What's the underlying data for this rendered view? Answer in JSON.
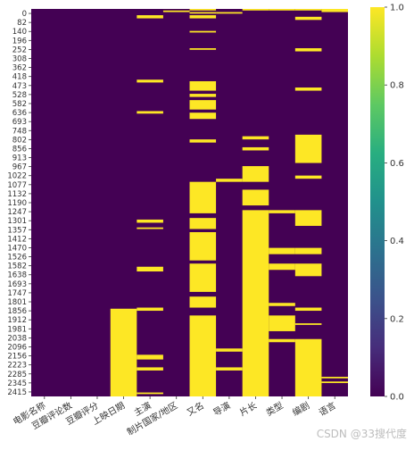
{
  "chart_data": {
    "type": "heatmap",
    "title": "",
    "xlabel": "",
    "ylabel": "",
    "value_range": [
      0.0,
      1.0
    ],
    "colormap": "viridis",
    "colors": {
      "low": "#440154",
      "high": "#fde725"
    },
    "x_categories": [
      "电影名称",
      "豆瓣评论数",
      "豆瓣评分",
      "上映日期",
      "主演",
      "制片国家/地区",
      "又名",
      "导演",
      "片长",
      "类型",
      "编剧",
      "语言"
    ],
    "y_tick_labels": [
      "0",
      "82",
      "140",
      "196",
      "252",
      "308",
      "362",
      "418",
      "473",
      "528",
      "582",
      "636",
      "693",
      "748",
      "802",
      "856",
      "913",
      "967",
      "1022",
      "1077",
      "1132",
      "1190",
      "1247",
      "1301",
      "1357",
      "1412",
      "1470",
      "1526",
      "1582",
      "1638",
      "1693",
      "1747",
      "1801",
      "1856",
      "1912",
      "1981",
      "2038",
      "2096",
      "2156",
      "2223",
      "2285",
      "2345",
      "2415"
    ],
    "row_count": 2465,
    "colorbar_ticks": [
      "0.0",
      "0.2",
      "0.4",
      "0.6",
      "0.8",
      "1.0"
    ],
    "missing_segments": {
      "电影名称": [],
      "豆瓣评论数": [],
      "豆瓣评分": [],
      "上映日期": [
        [
          1907,
          2465
        ]
      ],
      "主演": [
        [
          40,
          60
        ],
        [
          450,
          468
        ],
        [
          650,
          666
        ],
        [
          1340,
          1360
        ],
        [
          1390,
          1400
        ],
        [
          1640,
          1670
        ],
        [
          1900,
          1920
        ],
        [
          2200,
          2230
        ],
        [
          2280,
          2300
        ],
        [
          2440,
          2450
        ]
      ],
      "制片国家/地区": [
        [
          10,
          20
        ]
      ],
      "又名": [
        [
          0,
          10
        ],
        [
          20,
          30
        ],
        [
          40,
          60
        ],
        [
          140,
          150
        ],
        [
          250,
          260
        ],
        [
          460,
          520
        ],
        [
          540,
          560
        ],
        [
          580,
          640
        ],
        [
          660,
          700
        ],
        [
          830,
          850
        ],
        [
          1100,
          1300
        ],
        [
          1330,
          1400
        ],
        [
          1420,
          1600
        ],
        [
          1620,
          1800
        ],
        [
          1830,
          1900
        ],
        [
          1950,
          2465
        ]
      ],
      "导演": [
        [
          20,
          30
        ],
        [
          1080,
          1100
        ],
        [
          2160,
          2180
        ],
        [
          2280,
          2300
        ]
      ],
      "片长": [
        [
          0,
          10
        ],
        [
          810,
          830
        ],
        [
          880,
          900
        ],
        [
          1000,
          1100
        ],
        [
          1150,
          1250
        ],
        [
          1280,
          2465
        ]
      ],
      "类型": [
        [
          0,
          10
        ],
        [
          1280,
          1300
        ],
        [
          1520,
          1560
        ],
        [
          1620,
          1660
        ],
        [
          1870,
          1890
        ],
        [
          1950,
          2050
        ],
        [
          2100,
          2120
        ]
      ],
      "编剧": [
        [
          0,
          10
        ],
        [
          50,
          70
        ],
        [
          250,
          270
        ],
        [
          500,
          520
        ],
        [
          800,
          980
        ],
        [
          1060,
          1080
        ],
        [
          1280,
          1380
        ],
        [
          1520,
          1560
        ],
        [
          1620,
          1700
        ],
        [
          1900,
          1920
        ],
        [
          2000,
          2010
        ],
        [
          2100,
          2465
        ]
      ],
      "语言": [
        [
          0,
          20
        ],
        [
          2340,
          2350
        ],
        [
          2370,
          2380
        ]
      ]
    }
  },
  "watermark": "CSDN @33搜代度"
}
